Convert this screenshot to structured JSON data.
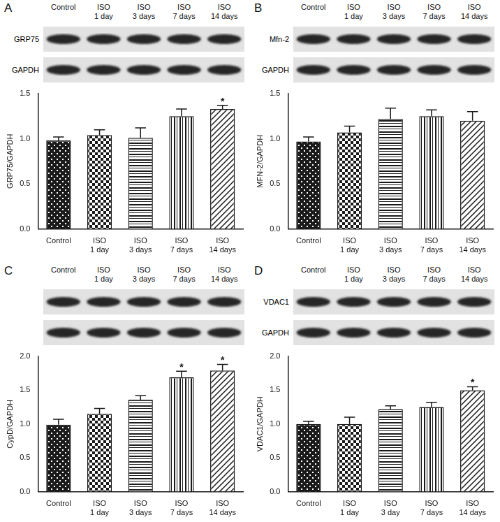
{
  "chart_data": [
    {
      "type": "bar",
      "panel": "A",
      "lane_labels": [
        "Control",
        "ISO 1 day",
        "ISO 3 days",
        "ISO 7 days",
        "ISO 14 days"
      ],
      "blot_labels": [
        "GRP75",
        "GAPDH"
      ],
      "categories": [
        "Control",
        "ISO 1 day",
        "ISO 3 days",
        "ISO 7 days",
        "ISO 14 days"
      ],
      "values": [
        0.98,
        1.04,
        1.01,
        1.25,
        1.33
      ],
      "errors": [
        0.04,
        0.06,
        0.11,
        0.08,
        0.04
      ],
      "y_label": "GRP75/GAPDH",
      "ylim": [
        0,
        1.5
      ],
      "yticks": [
        {
          "value": 0,
          "label": "0.0"
        },
        0.5,
        {
          "value": 1,
          "label": "1.0"
        },
        1.5
      ],
      "annotations": [
        {
          "category": "ISO 14 days",
          "text": "*"
        }
      ],
      "color": "#1a1a1a",
      "grid": false
    },
    {
      "type": "bar",
      "panel": "B",
      "lane_labels": [
        "Control",
        "ISO 1 day",
        "ISO 3 days",
        "ISO 7 days",
        "ISO 14 days"
      ],
      "blot_labels": [
        "Mfn-2",
        "GAPDH"
      ],
      "categories": [
        "Control",
        "ISO 1 day",
        "ISO 3 days",
        "ISO 7 days",
        "ISO 14 days"
      ],
      "values": [
        0.97,
        1.07,
        1.22,
        1.25,
        1.2
      ],
      "errors": [
        0.05,
        0.07,
        0.12,
        0.07,
        0.1
      ],
      "y_label": "MFN-2/GAPDH",
      "ylim": [
        0,
        1.5
      ],
      "yticks": [
        {
          "value": 0,
          "label": "0.0"
        },
        0.5,
        {
          "value": 1,
          "label": "1.0"
        },
        1.5
      ],
      "annotations": [],
      "color": "#1a1a1a",
      "grid": false
    },
    {
      "type": "bar",
      "panel": "C",
      "lane_labels": [
        "Control",
        "ISO 1 day",
        "ISO 3 days",
        "ISO 7 days",
        "ISO 14 days"
      ],
      "blot_labels": [
        null,
        null
      ],
      "categories": [
        "Control",
        "ISO 1 day",
        "ISO 3 days",
        "ISO 7 days",
        "ISO 14 days"
      ],
      "values": [
        0.99,
        1.15,
        1.36,
        1.69,
        1.79
      ],
      "errors": [
        0.08,
        0.08,
        0.06,
        0.09,
        0.09
      ],
      "y_label": "CypD/GAPDH",
      "ylim": [
        0,
        2
      ],
      "yticks": [
        {
          "value": 0,
          "label": "0.0"
        },
        0.5,
        {
          "value": 1,
          "label": "1.0"
        },
        1.5,
        {
          "value": 2,
          "label": "2.0"
        }
      ],
      "annotations": [
        {
          "category": "ISO 7 days",
          "text": "*"
        },
        {
          "category": "ISO 14 days",
          "text": "*"
        }
      ],
      "color": "#1a1a1a",
      "grid": false
    },
    {
      "type": "bar",
      "panel": "D",
      "lane_labels": [
        "Control",
        "ISO 1 day",
        "ISO 3 days",
        "ISO 7 days",
        "ISO 14 days"
      ],
      "blot_labels": [
        "VDAC1",
        "GAPDH"
      ],
      "categories": [
        "Control",
        "ISO 1 day",
        "ISO 3 day",
        "ISO 7 days",
        "ISO 14 days"
      ],
      "values": [
        1.0,
        1.0,
        1.22,
        1.25,
        1.5
      ],
      "errors": [
        0.04,
        0.1,
        0.05,
        0.07,
        0.05
      ],
      "y_label": "VDAC1/GAPDH",
      "ylim": [
        0,
        2
      ],
      "yticks": [
        {
          "value": 0,
          "label": "0.0"
        },
        0.5,
        {
          "value": 1,
          "label": "1.0"
        },
        1.5,
        {
          "value": 2,
          "label": "2.0"
        }
      ],
      "annotations": [
        {
          "category": "ISO 14 days",
          "text": "*"
        }
      ],
      "color": "#1a1a1a",
      "grid": false
    }
  ]
}
